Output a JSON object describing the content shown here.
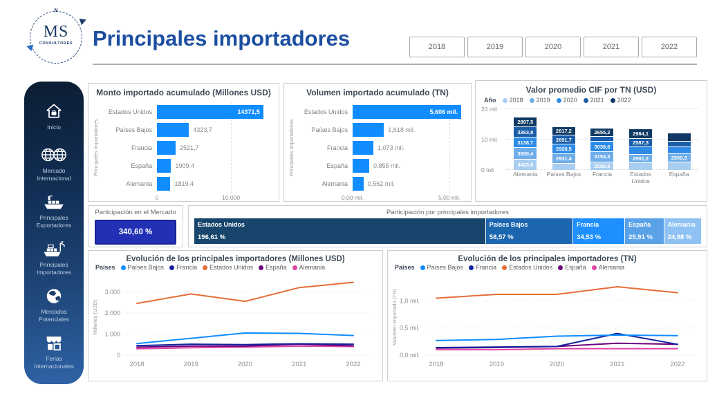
{
  "app": {
    "logo": {
      "monogram": "MS",
      "subtitle": "CONSULTORES",
      "compass_north": "N"
    },
    "title": "Principales importadores",
    "year_filters": [
      "2018",
      "2019",
      "2020",
      "2021",
      "2022"
    ]
  },
  "sidebar": {
    "items": [
      {
        "label": "Inicio",
        "icon": "home"
      },
      {
        "label": "Mercado Internacional",
        "icon": "two-globes"
      },
      {
        "label": "Principales Exportadores",
        "icon": "cargo-ship"
      },
      {
        "label": "Principales Importadores",
        "icon": "import-ship"
      },
      {
        "label": "Mercados Potenciales",
        "icon": "globe"
      },
      {
        "label": "Ferias Internacionales",
        "icon": "storefront"
      }
    ]
  },
  "colors": {
    "accent_blue": "#118DFF",
    "title_blue": "#1C4EA0",
    "kpi_background": "#2130B4",
    "panel_border": "#CBCFD4",
    "sidebar_gradient_top": "#0B1D33",
    "sidebar_gradient_bottom": "#2F62A6"
  },
  "chart_data": [
    {
      "id": "monto",
      "type": "bar",
      "orientation": "horizontal",
      "title": "Monto importado acumulado (Millones USD)",
      "ylabel": "Principales importadores",
      "categories": [
        "Estados Unidos",
        "Países Bajos",
        "Francia",
        "España",
        "Alemania"
      ],
      "values": [
        14371.5,
        4323.7,
        2521.7,
        1909.4,
        1819.4
      ],
      "value_labels": [
        "14371,5",
        "4323,7",
        "2521,7",
        "1909,4",
        "1819,4"
      ],
      "xmax": 15500,
      "xticks": [
        {
          "label": "0",
          "value": 0
        },
        {
          "label": "10.000",
          "value": 10000
        }
      ],
      "bar_color": "#118DFF"
    },
    {
      "id": "volumen",
      "type": "bar",
      "orientation": "horizontal",
      "title": "Volumen importado acumulado (TN)",
      "ylabel": "Principales importadores",
      "categories": [
        "Estados Unidos",
        "Países Bajos",
        "Francia",
        "España",
        "Alemania"
      ],
      "values": [
        5.606,
        1.618,
        1.073,
        0.855,
        0.562
      ],
      "value_labels": [
        "5,606 mil.",
        "1,618 mil.",
        "1,073 mil.",
        "0,855 mil.",
        "0,562 mil."
      ],
      "xmax": 5.75,
      "xticks": [
        {
          "label": "0,00 mil.",
          "value": 0
        },
        {
          "label": "5,00 mil.",
          "value": 5
        }
      ],
      "bar_color": "#118DFF"
    },
    {
      "id": "cif",
      "type": "stacked-column",
      "title": "Valor promedio CIF por TN (USD)",
      "legend_title": "Año",
      "years": [
        "2018",
        "2019",
        "2020",
        "2021",
        "2022"
      ],
      "year_colors": [
        "#A9CDF1",
        "#6FAEE9",
        "#2E8CE6",
        "#1A5DA8",
        "#103A63"
      ],
      "ymax": 20000,
      "yticks": [
        {
          "label": "0 mil",
          "value": 0
        },
        {
          "label": "10 mil",
          "value": 10000
        },
        {
          "label": "20 mil",
          "value": 20000
        }
      ],
      "columns": [
        {
          "category": "Alemania",
          "segments": [
            {
              "year": "2018",
              "value": 3420.6,
              "label": "3420,6"
            },
            {
              "year": "2019",
              "value": 3590.4,
              "label": "3590,4"
            },
            {
              "year": "2020",
              "value": 3138.7,
              "label": "3138,7"
            },
            {
              "year": "2021",
              "value": 3263.8,
              "label": "3263,8"
            },
            {
              "year": "2022",
              "value": 2897.5,
              "label": "2897,5"
            }
          ]
        },
        {
          "category": "Países Bajos",
          "segments": [
            {
              "year": "2018",
              "value": 2100,
              "label": ""
            },
            {
              "year": "2019",
              "value": 2931.4,
              "label": "2931,4"
            },
            {
              "year": "2020",
              "value": 2928.5,
              "label": "2928,5"
            },
            {
              "year": "2021",
              "value": 2691.7,
              "label": "2691,7"
            },
            {
              "year": "2022",
              "value": 2617.2,
              "label": "2617,2"
            }
          ]
        },
        {
          "category": "Francia",
          "segments": [
            {
              "year": "2018",
              "value": 2595.6,
              "label": "2595,6"
            },
            {
              "year": "2019",
              "value": 3154.3,
              "label": "3154,3"
            },
            {
              "year": "2020",
              "value": 3038.6,
              "label": "3038,6"
            },
            {
              "year": "2021",
              "value": 1400,
              "label": ""
            },
            {
              "year": "2022",
              "value": 2655.2,
              "label": "2655,2"
            }
          ]
        },
        {
          "category": "Estados Unidos",
          "segments": [
            {
              "year": "2018",
              "value": 2200,
              "label": ""
            },
            {
              "year": "2019",
              "value": 2591.2,
              "label": "2591,2"
            },
            {
              "year": "2020",
              "value": 2200,
              "label": ""
            },
            {
              "year": "2021",
              "value": 2587.3,
              "label": "2587,3"
            },
            {
              "year": "2022",
              "value": 2984.1,
              "label": "2984,1"
            }
          ]
        },
        {
          "category": "España",
          "segments": [
            {
              "year": "2018",
              "value": 2450,
              "label": ""
            },
            {
              "year": "2019",
              "value": 2509.3,
              "label": "2509,3"
            },
            {
              "year": "2020",
              "value": 2000,
              "label": ""
            },
            {
              "year": "2021",
              "value": 1800,
              "label": ""
            },
            {
              "year": "2022",
              "value": 2300,
              "label": ""
            }
          ]
        }
      ]
    },
    {
      "id": "participacion_mercado",
      "type": "card",
      "title": "Participación en el Mercado",
      "value": "340,60 %"
    },
    {
      "id": "participacion_importadores",
      "type": "stacked-bar",
      "title": "Participación por principales importadores",
      "segments": [
        {
          "name": "Estados Unidos",
          "label": "196,61 %",
          "value": 196.61,
          "color": "#17456B"
        },
        {
          "name": "Países Bajos",
          "label": "58,57 %",
          "value": 58.57,
          "color": "#1C66B0"
        },
        {
          "name": "Francia",
          "label": "34,53 %",
          "value": 34.53,
          "color": "#1E8FFF"
        },
        {
          "name": "España",
          "label": "25,91 %",
          "value": 25.91,
          "color": "#5AA2E8"
        },
        {
          "name": "Alemania",
          "label": "24,98 %",
          "value": 24.98,
          "color": "#8FC2F2"
        }
      ]
    },
    {
      "id": "evolucion_usd",
      "type": "line",
      "title": "Evolución de los principales importadores (Millones USD)",
      "legend_title": "Países",
      "ylabel": "Millones (USD)",
      "x": [
        "2018",
        "2019",
        "2020",
        "2021",
        "2022"
      ],
      "ymax": 3600,
      "yticks": [
        {
          "label": "0",
          "value": 0
        },
        {
          "label": "1.000",
          "value": 1000
        },
        {
          "label": "2.000",
          "value": 2000
        },
        {
          "label": "3.000",
          "value": 3000
        }
      ],
      "series": [
        {
          "name": "Países Bajos",
          "color": "#118DFF",
          "values": [
            550,
            800,
            1050,
            1030,
            930
          ]
        },
        {
          "name": "Francia",
          "color": "#12239E",
          "values": [
            450,
            520,
            500,
            540,
            520
          ]
        },
        {
          "name": "Estados Unidos",
          "color": "#E66C37",
          "values": [
            2450,
            2900,
            2550,
            3200,
            3450
          ]
        },
        {
          "name": "España",
          "color": "#6B007B",
          "values": [
            380,
            430,
            430,
            520,
            440
          ]
        },
        {
          "name": "Alemania",
          "color": "#E044A7",
          "values": [
            300,
            350,
            380,
            430,
            410
          ]
        }
      ]
    },
    {
      "id": "evolucion_tn",
      "type": "line",
      "title": "Evolución de los principales importadores (TN)",
      "legend_title": "Países",
      "ylabel": "Volumen importado (TN)",
      "x": [
        "2018",
        "2019",
        "2020",
        "2021",
        "2022"
      ],
      "ymax": 1.4,
      "yticks": [
        {
          "label": "0,0 mil.",
          "value": 0
        },
        {
          "label": "0,5 mil.",
          "value": 0.5
        },
        {
          "label": "1,0 mil.",
          "value": 1.0
        }
      ],
      "series": [
        {
          "name": "Países Bajos",
          "color": "#118DFF",
          "values": [
            0.27,
            0.29,
            0.35,
            0.37,
            0.36
          ]
        },
        {
          "name": "Francia",
          "color": "#12239E",
          "values": [
            0.14,
            0.15,
            0.16,
            0.4,
            0.2
          ]
        },
        {
          "name": "Estados Unidos",
          "color": "#E66C37",
          "values": [
            1.05,
            1.12,
            1.12,
            1.26,
            1.15
          ]
        },
        {
          "name": "España",
          "color": "#6B007B",
          "values": [
            0.13,
            0.14,
            0.16,
            0.22,
            0.2
          ]
        },
        {
          "name": "Alemania",
          "color": "#E044A7",
          "values": [
            0.1,
            0.1,
            0.12,
            0.12,
            0.12
          ]
        }
      ]
    }
  ]
}
